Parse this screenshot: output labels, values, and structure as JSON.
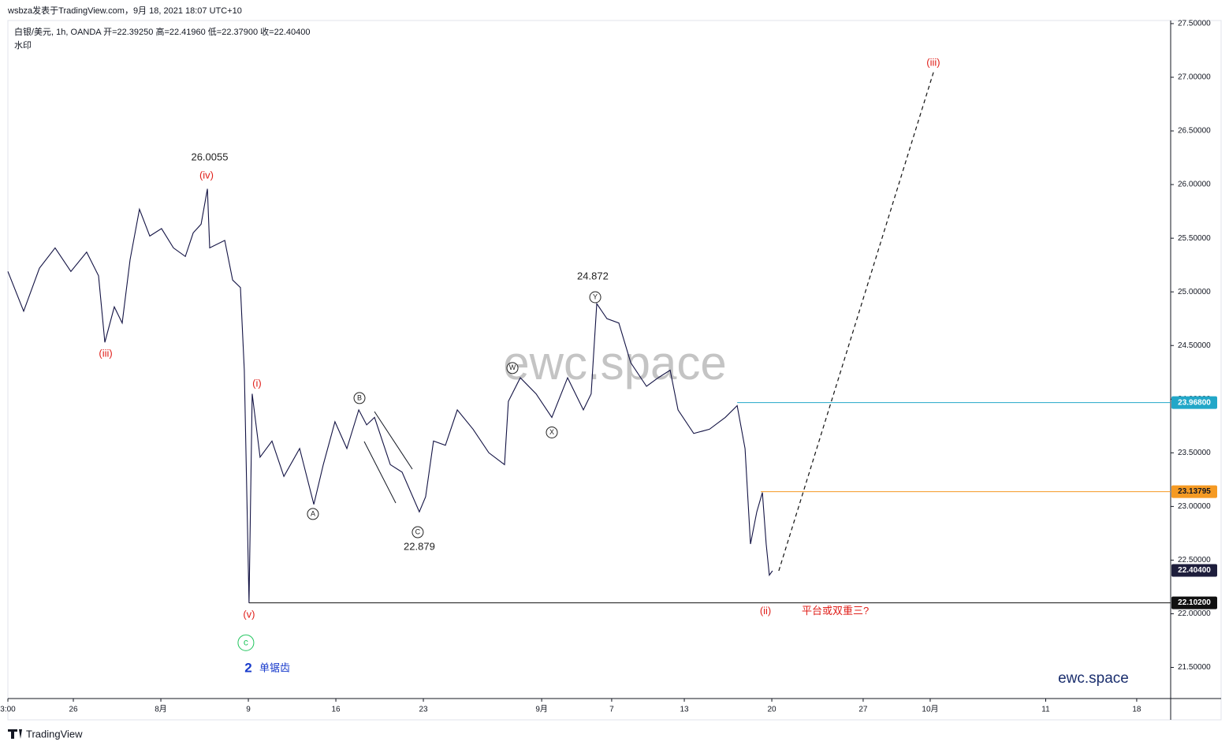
{
  "chart_data": {
    "type": "line",
    "header": {
      "published": "wsbza发表于TradingView.com，9月 18, 2021 18:07 UTC+10",
      "symbol": "白银/美元, 1h, OANDA  开=22.39250  高=22.41960  低=22.37900  收=22.40400",
      "note": "水印"
    },
    "watermark": "ewc.space",
    "brand": "ewc.space",
    "footer": "TradingView",
    "xlim": [
      0,
      66.44
    ],
    "ylim": [
      21.21,
      27.72
    ],
    "xticks": [
      {
        "value": 0,
        "label": "3:00"
      },
      {
        "value": 3.74,
        "label": "26"
      },
      {
        "value": 8.74,
        "label": "8月"
      },
      {
        "value": 13.74,
        "label": "9"
      },
      {
        "value": 18.74,
        "label": "16"
      },
      {
        "value": 23.74,
        "label": "23"
      },
      {
        "value": 30.5,
        "label": "9月"
      },
      {
        "value": 34.5,
        "label": "7"
      },
      {
        "value": 38.65,
        "label": "13"
      },
      {
        "value": 43.65,
        "label": "20"
      },
      {
        "value": 48.87,
        "label": "27"
      },
      {
        "value": 52.7,
        "label": "10月"
      },
      {
        "value": 59.3,
        "label": "11"
      },
      {
        "value": 64.5,
        "label": "18"
      }
    ],
    "yticks": [
      {
        "value": 21.5,
        "label": "21.50000"
      },
      {
        "value": 22,
        "label": "22.00000"
      },
      {
        "value": 22.5,
        "label": "22.50000"
      },
      {
        "value": 23,
        "label": "23.00000"
      },
      {
        "value": 23.5,
        "label": "23.50000"
      },
      {
        "value": 24,
        "label": "24.00000"
      },
      {
        "value": 24.5,
        "label": "24.50000"
      },
      {
        "value": 25,
        "label": "25.00000"
      },
      {
        "value": 25.5,
        "label": "25.50000"
      },
      {
        "value": 26,
        "label": "26.00000"
      },
      {
        "value": 26.5,
        "label": "26.50000"
      },
      {
        "value": 27,
        "label": "27.00000"
      },
      {
        "value": 27.5,
        "label": "27.50000"
      }
    ],
    "series": [
      {
        "color": "#131344",
        "dashed": false,
        "x": [
          0,
          0.9,
          1.8,
          2.7,
          3.6,
          4.5,
          5.18,
          5.54,
          6.08,
          6.53,
          6.98,
          7.52,
          8.11,
          8.78,
          9.46,
          10.14,
          10.59,
          11.04,
          11.4,
          11.53,
          12.39,
          12.84,
          13.29,
          13.51,
          13.78,
          13.96,
          14.41,
          15.09,
          15.77,
          16.67,
          17.48,
          18.02,
          18.69,
          19.37,
          20.05,
          20.5,
          20.95,
          21.85,
          22.52,
          23.51,
          23.87,
          24.32,
          25,
          25.68,
          26.58,
          27.48,
          28.38,
          28.6,
          29.28,
          30.18,
          31.08,
          31.98,
          32.88,
          33.33,
          33.65,
          34.23,
          34.91,
          35.59,
          36.49,
          37.16,
          37.84,
          38.29,
          39.19,
          40.09,
          40.99,
          41.67,
          42.12,
          42.43,
          42.79,
          43.11,
          43.33,
          43.51,
          43.69
        ],
        "values": [
          25.19,
          24.82,
          25.22,
          25.41,
          25.19,
          25.37,
          25.15,
          24.53,
          24.86,
          24.71,
          25.3,
          25.77,
          25.52,
          25.59,
          25.41,
          25.33,
          25.55,
          25.63,
          25.96,
          25.41,
          25.48,
          25.11,
          25.04,
          24.27,
          22.1,
          24.05,
          23.46,
          23.61,
          23.28,
          23.54,
          23.02,
          23.39,
          23.79,
          23.54,
          23.9,
          23.76,
          23.83,
          23.39,
          23.32,
          22.95,
          23.09,
          23.61,
          23.57,
          23.9,
          23.72,
          23.5,
          23.39,
          23.98,
          24.2,
          24.05,
          23.83,
          24.2,
          23.9,
          24.05,
          24.89,
          24.75,
          24.71,
          24.34,
          24.12,
          24.2,
          24.27,
          23.9,
          23.68,
          23.72,
          23.83,
          23.94,
          23.54,
          22.65,
          22.95,
          23.13,
          22.65,
          22.36,
          22.4
        ]
      },
      {
        "color": "#111111",
        "dashed": true,
        "x": [
          44.05,
          52.93
        ],
        "values": [
          22.4,
          27.07
        ]
      }
    ],
    "levels": [
      {
        "value": 23.968,
        "label": "23.96800",
        "color": "#22a7c8",
        "x": 41.67
      },
      {
        "value": 23.13795,
        "label": "23.13795",
        "color": "#f59a23",
        "x": 43.02
      },
      {
        "value": 22.404,
        "label": "22.40400",
        "color": "#1e1e3c",
        "x": null
      },
      {
        "value": 22.102,
        "label": "22.10200",
        "color": "#111111",
        "x": 13.78
      }
    ],
    "annotations": [
      {
        "text": "26.0055",
        "x": 11.53,
        "y": 26.25,
        "color": "#222222",
        "circled": false
      },
      {
        "text": "(iv)",
        "x": 11.35,
        "y": 26.08,
        "color": "#e0201b",
        "circled": false
      },
      {
        "text": "(iii)",
        "x": 5.59,
        "y": 24.42,
        "color": "#e0201b",
        "circled": false
      },
      {
        "text": "(i)",
        "x": 14.23,
        "y": 24.14,
        "color": "#e0201b",
        "circled": false
      },
      {
        "text": "(v)",
        "x": 13.78,
        "y": 21.99,
        "color": "#e0201b",
        "circled": false
      },
      {
        "text": "c",
        "x": 13.6,
        "y": 21.73,
        "color": "#22c55e",
        "circled": true
      },
      {
        "text": "2",
        "x": 13.74,
        "y": 21.49,
        "color": "#1a3ccc",
        "circled": false
      },
      {
        "text": "单锯齿",
        "x": 15.09,
        "y": 21.49,
        "color": "#1a3ccc",
        "circled": false
      },
      {
        "text": "A",
        "x": 17.43,
        "y": 22.93,
        "color": "#222222",
        "circled": true
      },
      {
        "text": "B",
        "x": 20.09,
        "y": 24.01,
        "color": "#222222",
        "circled": true
      },
      {
        "text": "C",
        "x": 23.42,
        "y": 22.76,
        "color": "#222222",
        "circled": true
      },
      {
        "text": "22.879",
        "x": 23.51,
        "y": 22.62,
        "color": "#222222",
        "circled": false
      },
      {
        "text": "W",
        "x": 28.83,
        "y": 24.29,
        "color": "#222222",
        "circled": true
      },
      {
        "text": "X",
        "x": 31.08,
        "y": 23.69,
        "color": "#222222",
        "circled": true
      },
      {
        "text": "Y",
        "x": 33.56,
        "y": 24.95,
        "color": "#222222",
        "circled": true
      },
      {
        "text": "24.872",
        "x": 33.42,
        "y": 25.14,
        "color": "#222222",
        "circled": false
      },
      {
        "text": "(ii)",
        "x": 43.29,
        "y": 22.02,
        "color": "#e0201b",
        "circled": false
      },
      {
        "text": "平台或双重三?",
        "x": 46.08,
        "y": 22.02,
        "color": "#e0201b",
        "circled": false
      },
      {
        "text": "(iii)",
        "x": 52.88,
        "y": 27.13,
        "color": "#e0201b",
        "circled": false
      }
    ]
  }
}
